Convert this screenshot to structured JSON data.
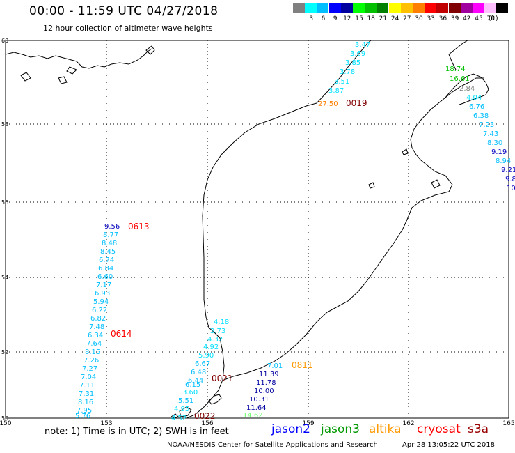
{
  "title": "00:00 - 11:59 UTC 04/27/2018",
  "subtitle": "12 hour collection of altimeter wave heights",
  "scale": {
    "unit": "(ft)",
    "bins": [
      {
        "label": "",
        "color": "#808080"
      },
      {
        "label": "3",
        "color": "#00ffff"
      },
      {
        "label": "6",
        "color": "#00bfff"
      },
      {
        "label": "9",
        "color": "#0000ff"
      },
      {
        "label": "12",
        "color": "#0000a0"
      },
      {
        "label": "15",
        "color": "#00ff00"
      },
      {
        "label": "18",
        "color": "#00c000"
      },
      {
        "label": "21",
        "color": "#008000"
      },
      {
        "label": "24",
        "color": "#ffff00"
      },
      {
        "label": "27",
        "color": "#ffc000"
      },
      {
        "label": "30",
        "color": "#ff8000"
      },
      {
        "label": "33",
        "color": "#ff0000"
      },
      {
        "label": "36",
        "color": "#c00000"
      },
      {
        "label": "39",
        "color": "#800000"
      },
      {
        "label": "42",
        "color": "#a000a0"
      },
      {
        "label": "45",
        "color": "#ff00ff"
      },
      {
        "label": "70",
        "color": "#ffc0ff"
      },
      {
        "label": "",
        "color": "#000000"
      }
    ]
  },
  "axes": {
    "lon_ticks": [
      "150",
      "153",
      "156",
      "159",
      "162",
      "165"
    ],
    "lat_ticks": [
      "50",
      "52",
      "54",
      "56",
      "58",
      "60"
    ]
  },
  "tracks": [
    {
      "time": "0613",
      "color": "#ff0000",
      "values": [
        {
          "v": "9.56",
          "c": "#0000c0"
        },
        {
          "v": "8.77",
          "c": "#00bfff"
        },
        {
          "v": "8.48",
          "c": "#00bfff"
        },
        {
          "v": "8.45",
          "c": "#00bfff"
        },
        {
          "v": "6.74",
          "c": "#00bfff"
        },
        {
          "v": "6.84",
          "c": "#00bfff"
        },
        {
          "v": "6.60",
          "c": "#00bfff"
        },
        {
          "v": "7.17",
          "c": "#00bfff"
        },
        {
          "v": "6.93",
          "c": "#00bfff"
        },
        {
          "v": "5.94",
          "c": "#00bfff"
        },
        {
          "v": "6.22",
          "c": "#00bfff"
        },
        {
          "v": "6.82",
          "c": "#00bfff"
        },
        {
          "v": "7.48",
          "c": "#00bfff"
        }
      ]
    },
    {
      "time": "0614",
      "color": "#ff0000",
      "values": [
        {
          "v": "6.34",
          "c": "#00bfff"
        },
        {
          "v": "7.64",
          "c": "#00bfff"
        },
        {
          "v": "8.15",
          "c": "#00bfff"
        },
        {
          "v": "7.26",
          "c": "#00bfff"
        },
        {
          "v": "7.27",
          "c": "#00bfff"
        },
        {
          "v": "7.04",
          "c": "#00bfff"
        },
        {
          "v": "7.11",
          "c": "#00bfff"
        },
        {
          "v": "7.31",
          "c": "#00bfff"
        },
        {
          "v": "8.16",
          "c": "#00bfff"
        },
        {
          "v": "7.95",
          "c": "#00bfff"
        },
        {
          "v": "5.76",
          "c": "#00bfff"
        }
      ]
    },
    {
      "time": "0019",
      "color": "#800000",
      "values": [
        {
          "v": "3.47",
          "c": "#00e0ff"
        },
        {
          "v": "3.69",
          "c": "#00e0ff"
        },
        {
          "v": "3.85",
          "c": "#00e0ff"
        },
        {
          "v": "3.78",
          "c": "#00e0ff"
        },
        {
          "v": "3.51",
          "c": "#00e0ff"
        },
        {
          "v": "3.87",
          "c": "#00e0ff"
        },
        {
          "v": "27.50",
          "c": "#ff8000"
        }
      ]
    },
    {
      "time": "0021",
      "color": "#800000",
      "values": [
        {
          "v": "4.18",
          "c": "#00e0ff"
        },
        {
          "v": "3.73",
          "c": "#00e0ff"
        },
        {
          "v": "4.32",
          "c": "#00e0ff"
        },
        {
          "v": "4.92",
          "c": "#00e0ff"
        },
        {
          "v": "5.90",
          "c": "#00e0ff"
        },
        {
          "v": "6.67",
          "c": "#00bfff"
        },
        {
          "v": "6.48",
          "c": "#00bfff"
        },
        {
          "v": "6.44",
          "c": "#00bfff"
        },
        {
          "v": "6.15",
          "c": "#00bfff"
        },
        {
          "v": "3.60",
          "c": "#00e0ff"
        },
        {
          "v": "5.51",
          "c": "#00bfff"
        },
        {
          "v": "4.95",
          "c": "#00e0ff"
        },
        {
          "v": "4.52",
          "c": "#00e0ff"
        }
      ]
    },
    {
      "time": "0022",
      "color": "#800000",
      "values": []
    },
    {
      "time": "0811",
      "color": "#ff9900",
      "values": [
        {
          "v": "7.01",
          "c": "#00bfff"
        },
        {
          "v": "11.39",
          "c": "#0000a0"
        },
        {
          "v": "11.78",
          "c": "#0000a0"
        },
        {
          "v": "10.00",
          "c": "#0000a0"
        },
        {
          "v": "10.31",
          "c": "#0000a0"
        },
        {
          "v": "11.64",
          "c": "#0000a0"
        },
        {
          "v": "14.62",
          "c": "#66ff66"
        }
      ]
    },
    {
      "time": "",
      "color": "#000000",
      "values": [
        {
          "v": "18.74",
          "c": "#00c000"
        },
        {
          "v": "16.61",
          "c": "#00c000"
        },
        {
          "v": "2.84",
          "c": "#808080"
        },
        {
          "v": "4.04",
          "c": "#00e0ff"
        },
        {
          "v": "6.76",
          "c": "#00bfff"
        },
        {
          "v": "6.38",
          "c": "#00bfff"
        },
        {
          "v": "7.23",
          "c": "#00bfff"
        },
        {
          "v": "7.43",
          "c": "#00bfff"
        },
        {
          "v": "8.30",
          "c": "#00bfff"
        },
        {
          "v": "9.19",
          "c": "#0000c0"
        },
        {
          "v": "8.94",
          "c": "#00bfff"
        },
        {
          "v": "9.21",
          "c": "#0000c0"
        },
        {
          "v": "9.8",
          "c": "#0000c0"
        },
        {
          "v": "10",
          "c": "#0000c0"
        }
      ]
    }
  ],
  "note": "note: 1) Time is in UTC; 2) SWH is in feet",
  "legend": [
    {
      "name": "jason2",
      "color": "#0000ff"
    },
    {
      "name": "jason3",
      "color": "#009900"
    },
    {
      "name": "altika",
      "color": "#ff9900"
    },
    {
      "name": "cryosat",
      "color": "#ff0000"
    },
    {
      "name": "s3a",
      "color": "#990000"
    }
  ],
  "credit": "NOAA/NESDIS Center for Satellite Applications and Research",
  "stamp": "Apr 28 13:05:22 UTC 2018"
}
